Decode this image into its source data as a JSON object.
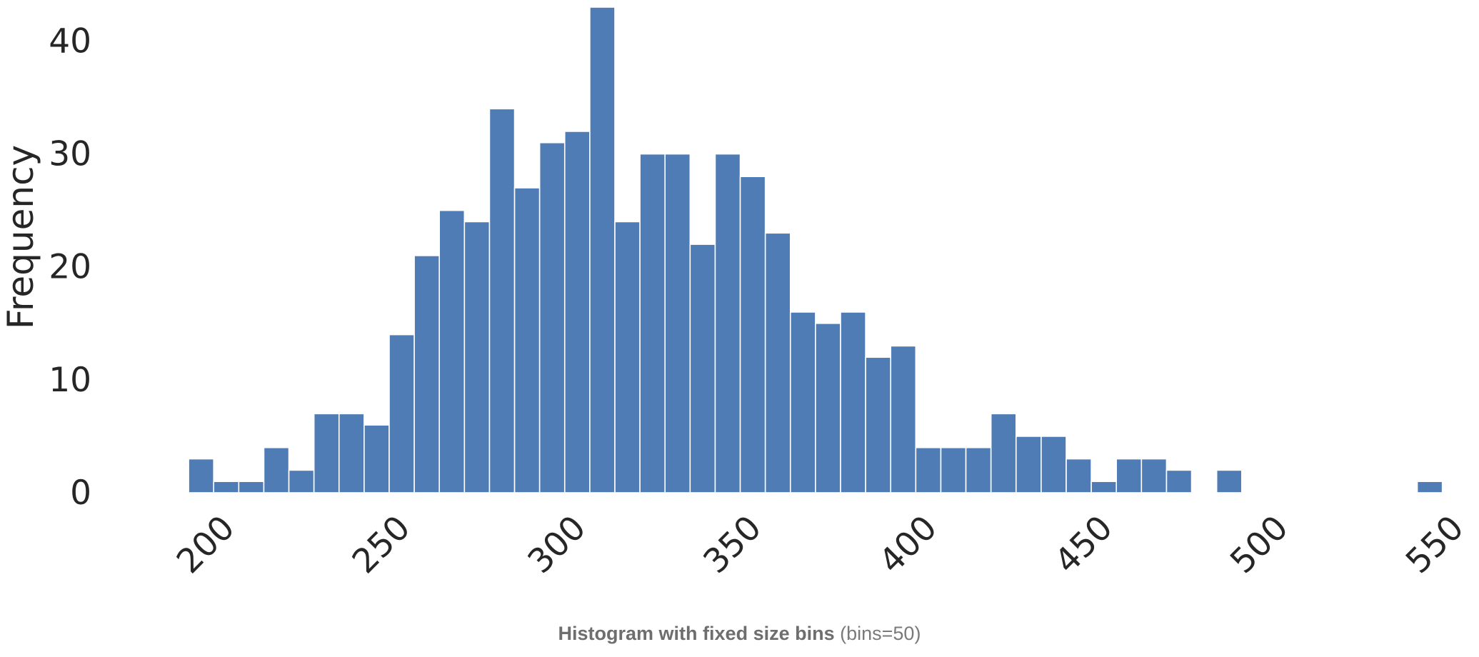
{
  "chart_data": {
    "type": "bar",
    "subtype": "histogram",
    "bar_color": "#4f7cb5",
    "bar_edge_color": "#ffffff",
    "background_color": "#ffffff",
    "grid": false,
    "xlabel": "",
    "ylabel": "Frequency",
    "xlim": [
      186,
      550
    ],
    "ylim": [
      0,
      43
    ],
    "x_ticks": [
      "200",
      "250",
      "300",
      "350",
      "400",
      "450",
      "500",
      "550"
    ],
    "y_ticks": [
      "0",
      "10",
      "20",
      "30",
      "40"
    ],
    "bin_start": 190.9,
    "bin_width": 7.14,
    "bin_count": 50,
    "values": [
      3,
      1,
      1,
      4,
      2,
      7,
      7,
      6,
      14,
      21,
      25,
      24,
      34,
      27,
      31,
      32,
      43,
      24,
      30,
      30,
      22,
      30,
      28,
      23,
      16,
      15,
      16,
      12,
      13,
      4,
      4,
      4,
      7,
      5,
      5,
      3,
      1,
      3,
      3,
      2,
      0,
      2,
      0,
      0,
      0,
      0,
      0,
      0,
      0,
      1
    ]
  },
  "caption": {
    "bold": "Histogram with fixed size bins",
    "normal": "(bins=50)"
  }
}
